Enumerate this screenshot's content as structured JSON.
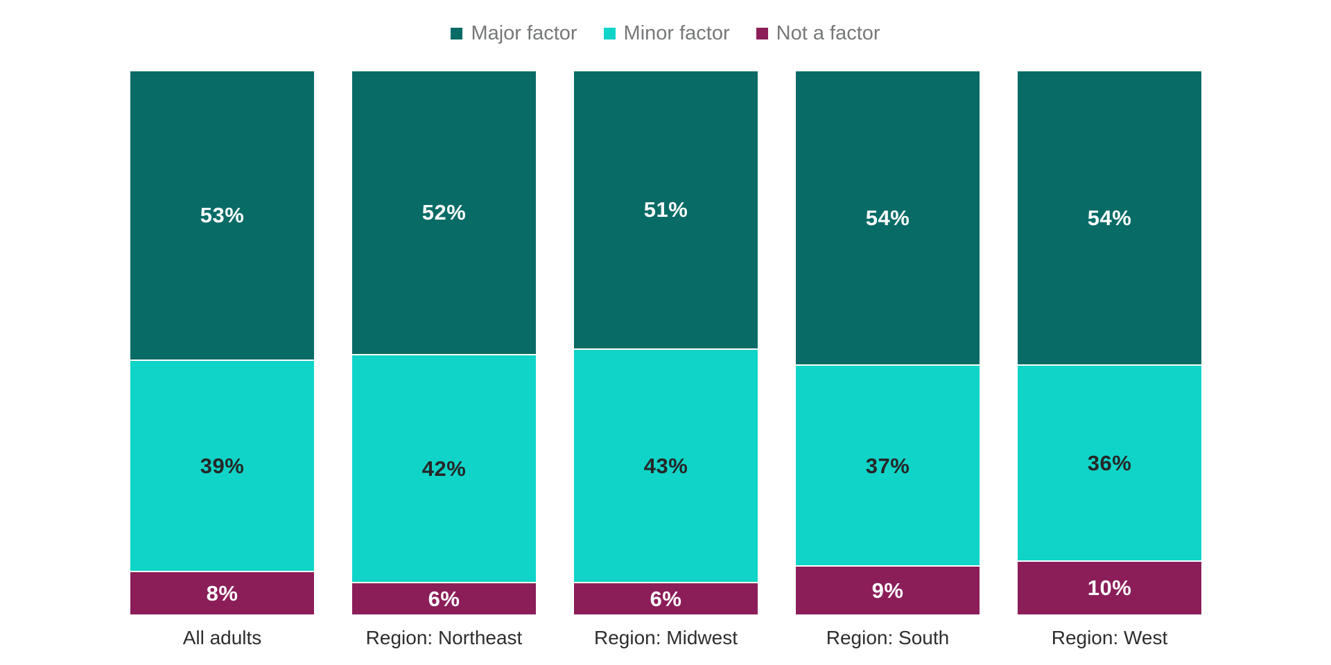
{
  "page": {
    "background": "#ffffff"
  },
  "chart_data": {
    "type": "bar",
    "variant": "stacked-100-percent-column",
    "title": "",
    "categories": [
      "All adults",
      "Region: Northeast",
      "Region: Midwest",
      "Region: South",
      "Region: West"
    ],
    "series": [
      {
        "name": "Major factor",
        "color": "#086b66",
        "label_color": "#ffffff",
        "values": [
          53,
          52,
          51,
          54,
          54
        ],
        "display_values": [
          "53%",
          "52%",
          "51%",
          "54%",
          "54%"
        ]
      },
      {
        "name": "Minor factor",
        "color": "#10d4c8",
        "label_color": "#262626",
        "values": [
          39,
          42,
          43,
          37,
          36
        ],
        "display_values": [
          "39%",
          "42%",
          "43%",
          "37%",
          "36%"
        ]
      },
      {
        "name": "Not a factor",
        "color": "#8b1e59",
        "label_color": "#ffffff",
        "values": [
          8,
          6,
          6,
          9,
          10
        ],
        "display_values": [
          "8%",
          "6%",
          "6%",
          "9%",
          "10%"
        ]
      }
    ],
    "value_suffix": "%",
    "ylim": [
      0,
      100
    ],
    "grid": false,
    "axes_visible": false,
    "legend_position": "top-center",
    "legend_text_color": "#76787a",
    "category_label_color": "#2e2e2e",
    "segment_separator_color": "#ffffff"
  }
}
